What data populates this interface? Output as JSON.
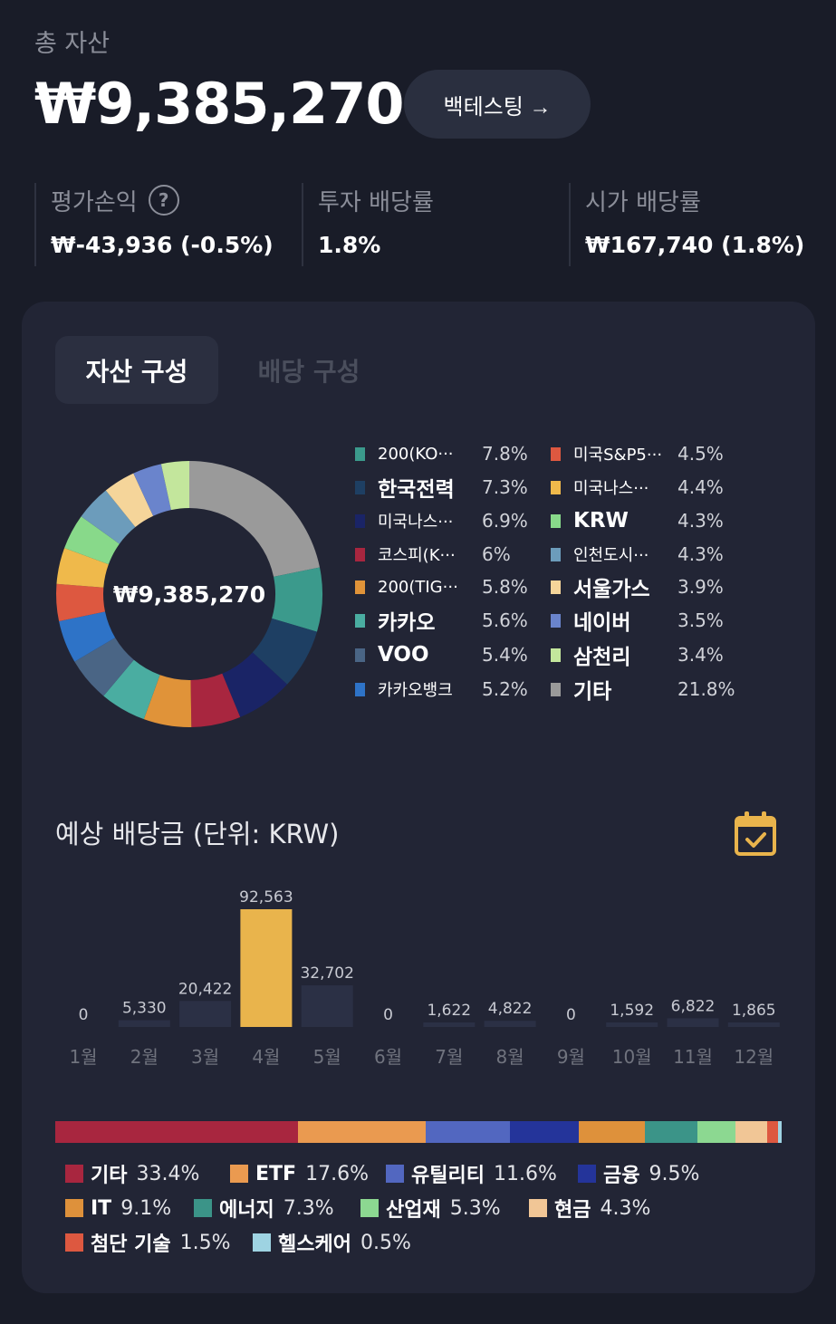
{
  "header": {
    "total_label": "총 자산",
    "total_value": "₩9,385,270",
    "backtest_label": "백테스팅 →"
  },
  "stats": [
    {
      "label": "평가손익",
      "value": "₩-43,936 (-0.5%)",
      "help": "?"
    },
    {
      "label": "투자 배당률",
      "value": "1.8%"
    },
    {
      "label": "시가 배당률",
      "value": "₩167,740 (1.8%)"
    }
  ],
  "tabs": {
    "asset": "자산 구성",
    "dividend": "배당 구성"
  },
  "donut": {
    "center_label": "₩9,385,270",
    "segments": [
      {
        "name": "200(KO···",
        "pct_label": "7.8%",
        "value": 7.8,
        "color": "#3b9a8c"
      },
      {
        "name": "한국전력",
        "pct_label": "7.3%",
        "value": 7.3,
        "color": "#1e3f63"
      },
      {
        "name": "미국나스···",
        "pct_label": "6.9%",
        "value": 6.9,
        "color": "#1a2466"
      },
      {
        "name": "코스피(K···",
        "pct_label": "6%",
        "value": 6.0,
        "color": "#a8263f"
      },
      {
        "name": "200(TIG···",
        "pct_label": "5.8%",
        "value": 5.8,
        "color": "#e09339"
      },
      {
        "name": "카카오",
        "pct_label": "5.6%",
        "value": 5.6,
        "color": "#4aada1"
      },
      {
        "name": "VOO",
        "pct_label": "5.4%",
        "value": 5.4,
        "color": "#4a6585"
      },
      {
        "name": "카카오뱅크",
        "pct_label": "5.2%",
        "value": 5.2,
        "color": "#2e73c7"
      },
      {
        "name": "미국S&P5···",
        "pct_label": "4.5%",
        "value": 4.5,
        "color": "#dd5840"
      },
      {
        "name": "미국나스···",
        "pct_label": "4.4%",
        "value": 4.4,
        "color": "#efb94b"
      },
      {
        "name": "KRW",
        "pct_label": "4.3%",
        "value": 4.3,
        "color": "#88d98a"
      },
      {
        "name": "인천도시···",
        "pct_label": "4.3%",
        "value": 4.3,
        "color": "#6c9cbb"
      },
      {
        "name": "서울가스",
        "pct_label": "3.9%",
        "value": 3.9,
        "color": "#f5d59a"
      },
      {
        "name": "네이버",
        "pct_label": "3.5%",
        "value": 3.5,
        "color": "#6a84cc"
      },
      {
        "name": "삼천리",
        "pct_label": "3.4%",
        "value": 3.4,
        "color": "#c3e69c"
      },
      {
        "name": "기타",
        "pct_label": "21.8%",
        "value": 21.8,
        "color": "#9a9a9a"
      }
    ]
  },
  "dividends": {
    "title": "예상 배당금 (단위: KRW)",
    "highlight_color": "#e9b44c"
  },
  "chart_data": {
    "type": "bar",
    "categories": [
      "1월",
      "2월",
      "3월",
      "4월",
      "5월",
      "6월",
      "7월",
      "8월",
      "9월",
      "10월",
      "11월",
      "12월"
    ],
    "values": [
      0,
      5330,
      20422,
      92563,
      32702,
      0,
      1622,
      4822,
      0,
      1592,
      6822,
      1865
    ],
    "value_labels": [
      "0",
      "5,330",
      "20,422",
      "92,563",
      "32,702",
      "0",
      "1,622",
      "4,822",
      "0",
      "1,592",
      "6,822",
      "1,865"
    ]
  },
  "sectors": [
    {
      "name": "기타",
      "pct_label": "33.4%",
      "value": 33.4,
      "color": "#a8263f"
    },
    {
      "name": "ETF",
      "pct_label": "17.6%",
      "value": 17.6,
      "color": "#ea9a50"
    },
    {
      "name": "유틸리티",
      "pct_label": "11.6%",
      "value": 11.6,
      "color": "#5267c0"
    },
    {
      "name": "금융",
      "pct_label": "9.5%",
      "value": 9.5,
      "color": "#24349a"
    },
    {
      "name": "IT",
      "pct_label": "9.1%",
      "value": 9.1,
      "color": "#de913b"
    },
    {
      "name": "에너지",
      "pct_label": "7.3%",
      "value": 7.3,
      "color": "#3b9488"
    },
    {
      "name": "산업재",
      "pct_label": "5.3%",
      "value": 5.3,
      "color": "#8cd891"
    },
    {
      "name": "현금",
      "pct_label": "4.3%",
      "value": 4.3,
      "color": "#f1c696"
    },
    {
      "name": "첨단 기술",
      "pct_label": "1.5%",
      "value": 1.5,
      "color": "#dd5840"
    },
    {
      "name": "헬스케어",
      "pct_label": "0.5%",
      "value": 0.5,
      "color": "#9ed3e2"
    }
  ]
}
